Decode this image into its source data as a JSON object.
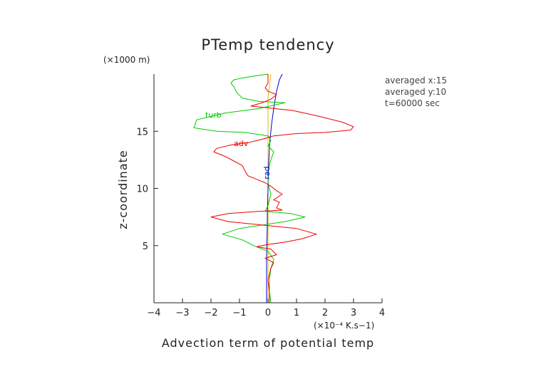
{
  "chart_data": {
    "type": "line",
    "title": "PTemp tendency",
    "xlabel": "Advection term of potential temp",
    "ylabel": "z-coordinate",
    "x_unit": "(×10⁻⁴ K.s−1)",
    "y_unit": "(×1000 m)",
    "xlim": [
      -4,
      4
    ],
    "ylim": [
      0,
      20
    ],
    "x_ticks": [
      -4,
      -3,
      -2,
      -1,
      0,
      1,
      2,
      3,
      4
    ],
    "y_ticks": [
      5,
      10,
      15
    ],
    "x_tick_labels": [
      "−4",
      "−3",
      "−2",
      "−1",
      "0",
      "1",
      "2",
      "3",
      "4"
    ],
    "y_tick_labels": [
      "5",
      "10",
      "15"
    ],
    "annotations": [
      "averaged  x:15",
      "averaged  y:10",
      "t=60000 sec"
    ],
    "grid": false,
    "series": [
      {
        "name": "turb",
        "color": "#00cc00",
        "label_at": [
          -2.2,
          16.2
        ],
        "points": [
          [
            0.1,
            0.0
          ],
          [
            0.05,
            1.0
          ],
          [
            0.05,
            2.0
          ],
          [
            0.1,
            3.0
          ],
          [
            0.2,
            3.8
          ],
          [
            0.0,
            4.5
          ],
          [
            -0.5,
            5.0
          ],
          [
            -0.9,
            5.5
          ],
          [
            -1.6,
            6.0
          ],
          [
            -1.0,
            6.5
          ],
          [
            -0.2,
            6.8
          ],
          [
            0.6,
            7.1
          ],
          [
            1.3,
            7.5
          ],
          [
            0.8,
            7.8
          ],
          [
            -0.1,
            8.0
          ],
          [
            0.0,
            8.5
          ],
          [
            0.1,
            9.5
          ],
          [
            0.0,
            10.5
          ],
          [
            0.0,
            11.5
          ],
          [
            0.1,
            12.5
          ],
          [
            0.2,
            13.2
          ],
          [
            0.0,
            13.7
          ],
          [
            0.1,
            14.2
          ],
          [
            0.0,
            14.6
          ],
          [
            -0.8,
            14.9
          ],
          [
            -1.8,
            15.0
          ],
          [
            -2.6,
            15.3
          ],
          [
            -2.5,
            16.0
          ],
          [
            -1.5,
            16.6
          ],
          [
            -0.3,
            17.0
          ],
          [
            0.6,
            17.5
          ],
          [
            -0.3,
            17.6
          ],
          [
            -0.9,
            17.9
          ],
          [
            -1.1,
            18.4
          ],
          [
            -1.2,
            18.9
          ],
          [
            -1.3,
            19.2
          ],
          [
            -1.2,
            19.5
          ],
          [
            -0.8,
            19.7
          ],
          [
            -0.3,
            19.9
          ],
          [
            0.0,
            20.0
          ]
        ]
      },
      {
        "name": "adv",
        "color": "#ee0000",
        "label_at": [
          -1.2,
          13.7
        ],
        "points": [
          [
            0.05,
            0.0
          ],
          [
            0.05,
            1.0
          ],
          [
            0.0,
            2.0
          ],
          [
            0.1,
            3.0
          ],
          [
            0.2,
            3.5
          ],
          [
            -0.1,
            3.9
          ],
          [
            0.3,
            4.2
          ],
          [
            0.1,
            4.7
          ],
          [
            -0.4,
            4.9
          ],
          [
            0.0,
            5.1
          ],
          [
            0.6,
            5.3
          ],
          [
            1.2,
            5.6
          ],
          [
            1.7,
            6.0
          ],
          [
            1.0,
            6.5
          ],
          [
            -0.2,
            6.8
          ],
          [
            -1.4,
            7.1
          ],
          [
            -2.0,
            7.5
          ],
          [
            -1.4,
            7.8
          ],
          [
            -0.3,
            8.0
          ],
          [
            0.5,
            8.1
          ],
          [
            0.3,
            8.3
          ],
          [
            0.4,
            8.8
          ],
          [
            0.2,
            9.0
          ],
          [
            0.5,
            9.5
          ],
          [
            0.3,
            9.8
          ],
          [
            0.1,
            10.2
          ],
          [
            -0.1,
            10.5
          ],
          [
            -0.4,
            10.8
          ],
          [
            -0.7,
            11.1
          ],
          [
            -0.8,
            11.5
          ],
          [
            -0.9,
            12.0
          ],
          [
            -1.2,
            12.4
          ],
          [
            -1.5,
            12.8
          ],
          [
            -1.9,
            13.2
          ],
          [
            -1.8,
            13.5
          ],
          [
            -1.3,
            13.8
          ],
          [
            -0.7,
            14.0
          ],
          [
            -0.2,
            14.3
          ],
          [
            0.2,
            14.6
          ],
          [
            1.0,
            14.8
          ],
          [
            2.0,
            14.9
          ],
          [
            2.9,
            15.1
          ],
          [
            3.0,
            15.4
          ],
          [
            2.6,
            15.8
          ],
          [
            1.8,
            16.3
          ],
          [
            0.9,
            16.8
          ],
          [
            0.2,
            17.0
          ],
          [
            -0.6,
            17.2
          ],
          [
            -0.2,
            17.5
          ],
          [
            0.1,
            17.8
          ],
          [
            0.3,
            18.2
          ],
          [
            0.0,
            18.5
          ],
          [
            -0.1,
            18.8
          ],
          [
            0.0,
            19.2
          ],
          [
            0.0,
            20.0
          ]
        ]
      },
      {
        "name": "rad",
        "color": "#0000dd",
        "label_at": [
          0.05,
          10.8
        ],
        "points": [
          [
            -0.05,
            0.0
          ],
          [
            -0.05,
            2.0
          ],
          [
            -0.05,
            4.0
          ],
          [
            -0.03,
            6.0
          ],
          [
            -0.02,
            8.0
          ],
          [
            0.0,
            10.0
          ],
          [
            0.02,
            12.0
          ],
          [
            0.06,
            14.0
          ],
          [
            0.12,
            15.5
          ],
          [
            0.2,
            17.0
          ],
          [
            0.3,
            18.5
          ],
          [
            0.4,
            19.5
          ],
          [
            0.5,
            20.0
          ]
        ]
      },
      {
        "name": "",
        "color": "#e8b800",
        "label_at": null,
        "points": [
          [
            0.0,
            0.0
          ],
          [
            0.0,
            4.0
          ],
          [
            0.0,
            8.0
          ],
          [
            0.0,
            12.0
          ],
          [
            0.0,
            16.0
          ],
          [
            0.0,
            18.0
          ],
          [
            0.05,
            19.0
          ],
          [
            0.1,
            20.0
          ]
        ]
      }
    ]
  }
}
